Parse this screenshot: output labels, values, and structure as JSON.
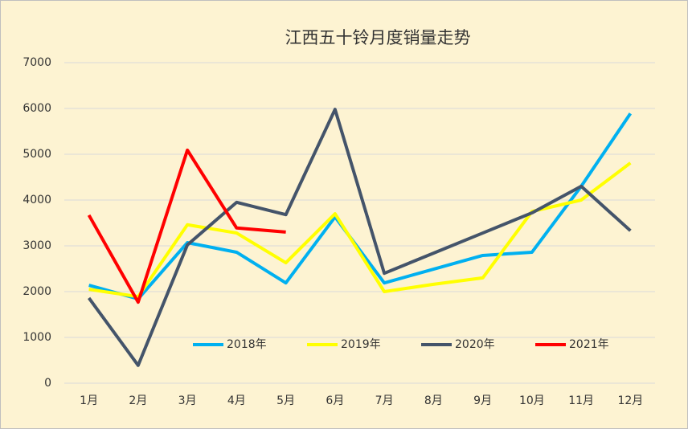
{
  "chart_data": {
    "type": "line",
    "title": "江西五十铃月度销量走势",
    "categories": [
      "1月",
      "2月",
      "3月",
      "4月",
      "5月",
      "6月",
      "7月",
      "8月",
      "9月",
      "10月",
      "11月",
      "12月"
    ],
    "series": [
      {
        "name": "2018年",
        "color": "#00b0f0",
        "values": [
          2140,
          1840,
          3070,
          2860,
          2190,
          3630,
          2190,
          2490,
          2790,
          2860,
          4300,
          5890
        ]
      },
      {
        "name": "2019年",
        "color": "#ffff00",
        "values": [
          2050,
          1890,
          3460,
          3280,
          2630,
          3700,
          2000,
          2160,
          2300,
          3750,
          4000,
          4810
        ]
      },
      {
        "name": "2020年",
        "color": "#44546a",
        "values": [
          1860,
          390,
          3020,
          3950,
          3680,
          5980,
          2400,
          2840,
          3280,
          3720,
          4300,
          3330
        ]
      },
      {
        "name": "2021年",
        "color": "#ff0000",
        "values": [
          3670,
          1770,
          5090,
          3390,
          3300,
          null,
          null,
          null,
          null,
          null,
          null,
          null
        ]
      }
    ],
    "ylim": [
      0,
      7000
    ],
    "yticks": [
      0,
      1000,
      2000,
      3000,
      4000,
      5000,
      6000,
      7000
    ],
    "grid": true,
    "legend": "bottom"
  }
}
